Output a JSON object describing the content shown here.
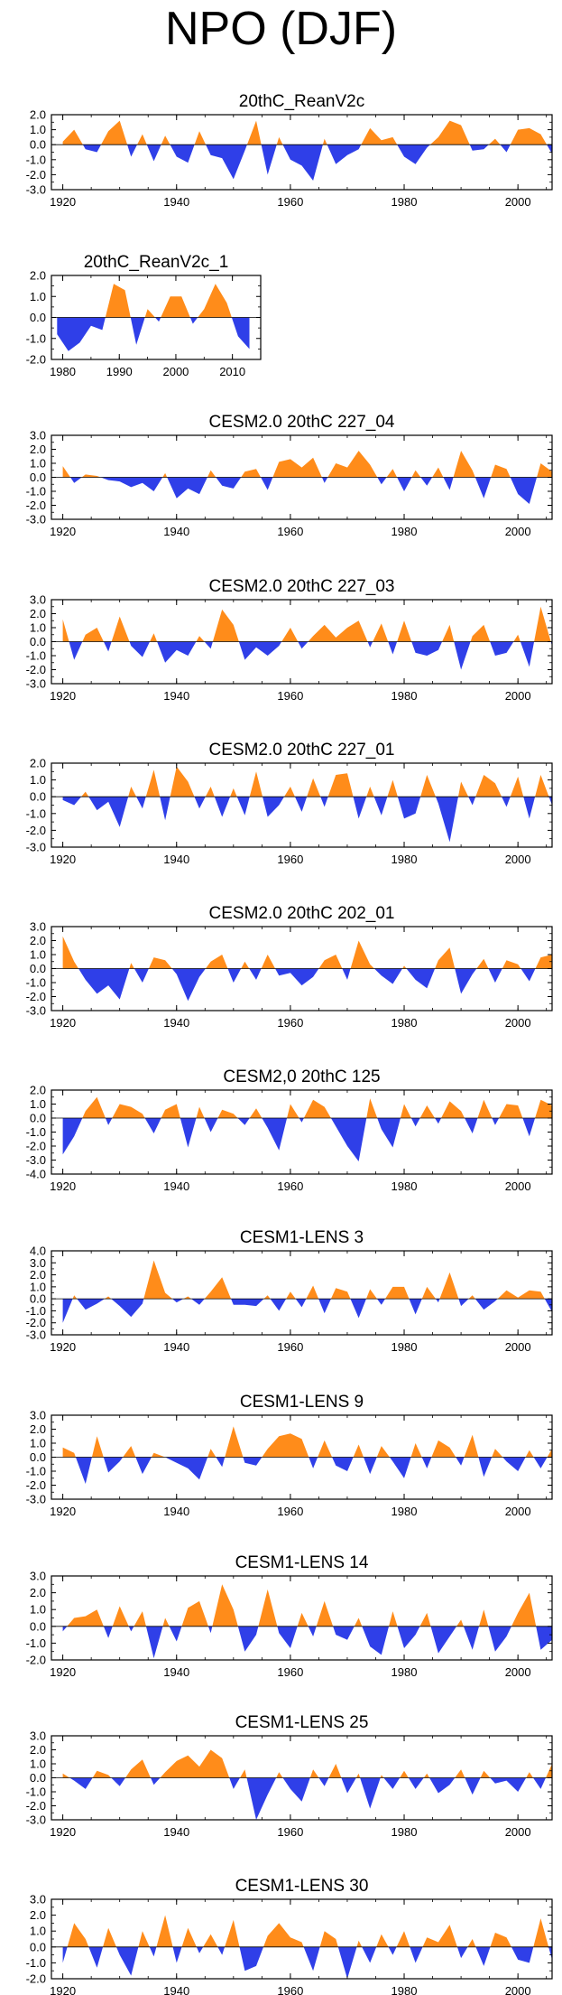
{
  "page_title": "NPO (DJF)",
  "colors": {
    "positive": "#ff8c1a",
    "negative": "#2f3fe8",
    "frame": "#000000"
  },
  "chart_data": [
    {
      "type": "area",
      "title": "20thC_ReanV2c",
      "x": [
        1920,
        1922,
        1924,
        1926,
        1928,
        1930,
        1932,
        1934,
        1936,
        1938,
        1940,
        1942,
        1944,
        1946,
        1948,
        1950,
        1952,
        1954,
        1956,
        1958,
        1960,
        1962,
        1964,
        1966,
        1968,
        1970,
        1972,
        1974,
        1976,
        1978,
        1980,
        1982,
        1984,
        1986,
        1988,
        1990,
        1992,
        1994,
        1996,
        1998,
        2000,
        2002,
        2004,
        2006
      ],
      "values": [
        0.2,
        1.0,
        -0.3,
        -0.5,
        0.9,
        1.6,
        -0.8,
        0.7,
        -1.1,
        0.6,
        -0.8,
        -1.2,
        0.9,
        -0.7,
        -0.9,
        -2.3,
        -0.4,
        1.6,
        -2.0,
        0.5,
        -1.0,
        -1.4,
        -2.4,
        0.4,
        -1.3,
        -0.7,
        -0.3,
        1.1,
        0.3,
        0.5,
        -0.8,
        -1.3,
        -0.2,
        0.5,
        1.6,
        1.3,
        -0.4,
        -0.3,
        0.4,
        -0.5,
        1.0,
        1.1,
        0.7,
        -0.6
      ],
      "xlim": [
        1918,
        2006
      ],
      "ylim": [
        -3.0,
        2.0
      ],
      "xticks": [
        "1920",
        "1940",
        "1960",
        "1980",
        "2000"
      ],
      "yticks": [
        "2.0",
        "1.0",
        "0.0",
        "-1.0",
        "-2.0",
        "-3.0"
      ]
    },
    {
      "type": "area",
      "title": "20thC_ReanV2c_1",
      "x": [
        1979,
        1981,
        1983,
        1985,
        1987,
        1989,
        1991,
        1993,
        1995,
        1997,
        1999,
        2001,
        2003,
        2005,
        2007,
        2009,
        2011,
        2013
      ],
      "values": [
        -0.8,
        -1.6,
        -1.2,
        -0.4,
        -0.6,
        1.6,
        1.3,
        -1.3,
        0.4,
        -0.2,
        1.0,
        1.0,
        -0.3,
        0.4,
        1.6,
        0.7,
        -0.9,
        -1.5
      ],
      "xlim": [
        1978,
        2015
      ],
      "ylim": [
        -2.0,
        2.0
      ],
      "xticks": [
        "1980",
        "1990",
        "2000",
        "2010"
      ],
      "yticks": [
        "2.0",
        "1.0",
        "0.0",
        "-1.0",
        "-2.0"
      ]
    },
    {
      "type": "area",
      "title": "CESM2.0 20thC 227_04",
      "x": [
        1920,
        1922,
        1924,
        1926,
        1928,
        1930,
        1932,
        1934,
        1936,
        1938,
        1940,
        1942,
        1944,
        1946,
        1948,
        1950,
        1952,
        1954,
        1956,
        1958,
        1960,
        1962,
        1964,
        1966,
        1968,
        1970,
        1972,
        1974,
        1976,
        1978,
        1980,
        1982,
        1984,
        1986,
        1988,
        1990,
        1992,
        1994,
        1996,
        1998,
        2000,
        2002,
        2004,
        2006
      ],
      "values": [
        0.8,
        -0.4,
        0.2,
        0.1,
        -0.2,
        -0.3,
        -0.7,
        -0.4,
        -1.0,
        0.3,
        -1.5,
        -0.8,
        -1.2,
        0.5,
        -0.6,
        -0.8,
        0.4,
        0.6,
        -0.9,
        1.1,
        1.3,
        0.7,
        1.4,
        -0.4,
        1.0,
        0.7,
        1.9,
        0.9,
        -0.5,
        0.6,
        -1.0,
        0.5,
        -0.6,
        0.7,
        -0.9,
        1.9,
        0.5,
        -1.5,
        0.9,
        0.6,
        -1.2,
        -1.9,
        1.0,
        0.4
      ],
      "xlim": [
        1918,
        2006
      ],
      "ylim": [
        -3.0,
        3.0
      ],
      "xticks": [
        "1920",
        "1940",
        "1960",
        "1980",
        "2000"
      ],
      "yticks": [
        "3.0",
        "2.0",
        "1.0",
        "0.0",
        "-1.0",
        "-2.0",
        "-3.0"
      ]
    },
    {
      "type": "area",
      "title": "CESM2.0 20thC 227_03",
      "x": [
        1920,
        1922,
        1924,
        1926,
        1928,
        1930,
        1932,
        1934,
        1936,
        1938,
        1940,
        1942,
        1944,
        1946,
        1948,
        1950,
        1952,
        1954,
        1956,
        1958,
        1960,
        1962,
        1964,
        1966,
        1968,
        1970,
        1972,
        1974,
        1976,
        1978,
        1980,
        1982,
        1984,
        1986,
        1988,
        1990,
        1992,
        1994,
        1996,
        1998,
        2000,
        2002,
        2004,
        2006
      ],
      "values": [
        1.6,
        -1.3,
        0.5,
        1.0,
        -0.7,
        1.8,
        -0.3,
        -1.1,
        0.6,
        -1.5,
        -0.6,
        -1.0,
        0.4,
        -0.5,
        2.3,
        1.2,
        -1.3,
        -0.4,
        -1.0,
        -0.3,
        1.0,
        -0.5,
        0.4,
        1.2,
        0.3,
        1.0,
        1.5,
        -0.4,
        1.3,
        -0.9,
        1.5,
        -0.8,
        -1.0,
        -0.6,
        1.2,
        -2.0,
        0.4,
        1.2,
        -1.0,
        -0.8,
        0.5,
        -1.8,
        2.5,
        -0.3
      ],
      "xlim": [
        1918,
        2006
      ],
      "ylim": [
        -3.0,
        3.0
      ],
      "xticks": [
        "1920",
        "1940",
        "1960",
        "1980",
        "2000"
      ],
      "yticks": [
        "3.0",
        "2.0",
        "1.0",
        "0.0",
        "-1.0",
        "-2.0",
        "-3.0"
      ]
    },
    {
      "type": "area",
      "title": "CESM2.0 20thC 227_01",
      "x": [
        1920,
        1922,
        1924,
        1926,
        1928,
        1930,
        1932,
        1934,
        1936,
        1938,
        1940,
        1942,
        1944,
        1946,
        1948,
        1950,
        1952,
        1954,
        1956,
        1958,
        1960,
        1962,
        1964,
        1966,
        1968,
        1970,
        1972,
        1974,
        1976,
        1978,
        1980,
        1982,
        1984,
        1986,
        1988,
        1990,
        1992,
        1994,
        1996,
        1998,
        2000,
        2002,
        2004,
        2006
      ],
      "values": [
        -0.2,
        -0.5,
        0.3,
        -0.8,
        -0.3,
        -1.8,
        0.6,
        -0.7,
        1.6,
        -1.4,
        1.8,
        0.9,
        -0.7,
        0.6,
        -1.2,
        0.5,
        -1.1,
        1.5,
        -1.2,
        -0.5,
        0.6,
        -0.9,
        1.1,
        -0.6,
        1.3,
        1.4,
        -1.3,
        0.6,
        -1.1,
        1.0,
        -1.3,
        -1.0,
        1.3,
        -0.4,
        -2.7,
        0.9,
        -0.5,
        1.3,
        0.8,
        -0.6,
        1.2,
        -1.3,
        1.3,
        -0.5
      ],
      "xlim": [
        1918,
        2006
      ],
      "ylim": [
        -3.0,
        2.0
      ],
      "xticks": [
        "1920",
        "1940",
        "1960",
        "1980",
        "2000"
      ],
      "yticks": [
        "2.0",
        "1.0",
        "0.0",
        "-1.0",
        "-2.0",
        "-3.0"
      ]
    },
    {
      "type": "area",
      "title": "CESM2.0 20thC 202_01",
      "x": [
        1920,
        1922,
        1924,
        1926,
        1928,
        1930,
        1932,
        1934,
        1936,
        1938,
        1940,
        1942,
        1944,
        1946,
        1948,
        1950,
        1952,
        1954,
        1956,
        1958,
        1960,
        1962,
        1964,
        1966,
        1968,
        1970,
        1972,
        1974,
        1976,
        1978,
        1980,
        1982,
        1984,
        1986,
        1988,
        1990,
        1992,
        1994,
        1996,
        1998,
        2000,
        2002,
        2004,
        2006
      ],
      "values": [
        2.3,
        0.5,
        -0.8,
        -1.8,
        -1.2,
        -2.2,
        0.4,
        -1.0,
        0.8,
        0.6,
        -0.4,
        -2.3,
        -0.6,
        0.5,
        1.0,
        -1.0,
        0.5,
        -0.8,
        1.0,
        -0.5,
        -0.3,
        -1.2,
        -0.6,
        0.6,
        1.0,
        -0.8,
        2.0,
        0.3,
        -0.5,
        -1.1,
        0.2,
        -0.8,
        -1.4,
        0.6,
        1.5,
        -1.8,
        -0.4,
        0.7,
        -1.0,
        0.6,
        0.3,
        -0.9,
        0.8,
        1.0
      ],
      "xlim": [
        1918,
        2006
      ],
      "ylim": [
        -3.0,
        3.0
      ],
      "xticks": [
        "1920",
        "1940",
        "1960",
        "1980",
        "2000"
      ],
      "yticks": [
        "3.0",
        "2.0",
        "1.0",
        "0.0",
        "-1.0",
        "-2.0",
        "-3.0"
      ]
    },
    {
      "type": "area",
      "title": "CESM2,0 20thC 125",
      "x": [
        1920,
        1922,
        1924,
        1926,
        1928,
        1930,
        1932,
        1934,
        1936,
        1938,
        1940,
        1942,
        1944,
        1946,
        1948,
        1950,
        1952,
        1954,
        1956,
        1958,
        1960,
        1962,
        1964,
        1966,
        1968,
        1970,
        1972,
        1974,
        1976,
        1978,
        1980,
        1982,
        1984,
        1986,
        1988,
        1990,
        1992,
        1994,
        1996,
        1998,
        2000,
        2002,
        2004,
        2006
      ],
      "values": [
        -2.6,
        -1.3,
        0.5,
        1.5,
        -0.5,
        1.0,
        0.8,
        0.3,
        -1.1,
        0.6,
        1.0,
        -2.1,
        0.8,
        -1.0,
        0.6,
        0.3,
        -0.5,
        0.7,
        -0.7,
        -2.3,
        1.0,
        -0.3,
        1.3,
        0.8,
        -0.6,
        -2.0,
        -3.1,
        1.4,
        -0.8,
        -2.1,
        1.0,
        -0.6,
        0.9,
        -0.4,
        1.2,
        0.5,
        -1.1,
        1.3,
        -0.5,
        1.0,
        0.9,
        -1.3,
        1.3,
        0.9
      ],
      "xlim": [
        1918,
        2006
      ],
      "ylim": [
        -4.0,
        2.0
      ],
      "xticks": [
        "1920",
        "1940",
        "1960",
        "1980",
        "2000"
      ],
      "yticks": [
        "2.0",
        "1.0",
        "0.0",
        "-1.0",
        "-2.0",
        "-3.0",
        "-4.0"
      ]
    },
    {
      "type": "area",
      "title": "CESM1-LENS 3",
      "x": [
        1920,
        1922,
        1924,
        1926,
        1928,
        1930,
        1932,
        1934,
        1936,
        1938,
        1940,
        1942,
        1944,
        1946,
        1948,
        1950,
        1952,
        1954,
        1956,
        1958,
        1960,
        1962,
        1964,
        1966,
        1968,
        1970,
        1972,
        1974,
        1976,
        1978,
        1980,
        1982,
        1984,
        1986,
        1988,
        1990,
        1992,
        1994,
        1996,
        1998,
        2000,
        2002,
        2004,
        2006
      ],
      "values": [
        -2.0,
        0.3,
        -0.9,
        -0.4,
        0.2,
        -0.6,
        -1.5,
        -0.4,
        3.2,
        0.5,
        -0.3,
        0.2,
        -0.5,
        0.6,
        1.8,
        -0.5,
        -0.5,
        -0.6,
        0.3,
        -1.0,
        0.6,
        -0.7,
        1.1,
        -1.2,
        0.9,
        0.6,
        -1.6,
        0.8,
        -0.5,
        1.0,
        1.0,
        -1.3,
        1.0,
        -0.3,
        2.2,
        -0.6,
        0.3,
        -0.9,
        -0.2,
        0.7,
        0.1,
        0.7,
        0.6,
        -1.1
      ],
      "xlim": [
        1918,
        2006
      ],
      "ylim": [
        -3.0,
        4.0
      ],
      "xticks": [
        "1920",
        "1940",
        "1960",
        "1980",
        "2000"
      ],
      "yticks": [
        "4.0",
        "3.0",
        "2.0",
        "1.0",
        "0.0",
        "-1.0",
        "-2.0",
        "-3.0"
      ]
    },
    {
      "type": "area",
      "title": "CESM1-LENS 9",
      "x": [
        1920,
        1922,
        1924,
        1926,
        1928,
        1930,
        1932,
        1934,
        1936,
        1938,
        1940,
        1942,
        1944,
        1946,
        1948,
        1950,
        1952,
        1954,
        1956,
        1958,
        1960,
        1962,
        1964,
        1966,
        1968,
        1970,
        1972,
        1974,
        1976,
        1978,
        1980,
        1982,
        1984,
        1986,
        1988,
        1990,
        1992,
        1994,
        1996,
        1998,
        2000,
        2002,
        2004,
        2006
      ],
      "values": [
        0.7,
        0.3,
        -1.9,
        1.5,
        -1.1,
        -0.3,
        0.8,
        -1.2,
        0.3,
        0.0,
        -0.4,
        -0.8,
        -1.6,
        0.6,
        -0.7,
        2.2,
        -0.4,
        -0.6,
        0.6,
        1.5,
        1.7,
        1.3,
        -0.8,
        1.2,
        -0.6,
        -1.0,
        0.9,
        -1.2,
        0.8,
        -0.3,
        -1.5,
        1.0,
        -0.8,
        1.2,
        0.7,
        -0.6,
        1.6,
        -1.4,
        0.6,
        -0.3,
        -1.0,
        0.5,
        -0.8,
        0.6
      ],
      "xlim": [
        1918,
        2006
      ],
      "ylim": [
        -3.0,
        3.0
      ],
      "xticks": [
        "1920",
        "1940",
        "1960",
        "1980",
        "2000"
      ],
      "yticks": [
        "3.0",
        "2.0",
        "1.0",
        "0.0",
        "-1.0",
        "-2.0",
        "-3.0"
      ]
    },
    {
      "type": "area",
      "title": "CESM1-LENS 14",
      "x": [
        1920,
        1922,
        1924,
        1926,
        1928,
        1930,
        1932,
        1934,
        1936,
        1938,
        1940,
        1942,
        1944,
        1946,
        1948,
        1950,
        1952,
        1954,
        1956,
        1958,
        1960,
        1962,
        1964,
        1966,
        1968,
        1970,
        1972,
        1974,
        1976,
        1978,
        1980,
        1982,
        1984,
        1986,
        1988,
        1990,
        1992,
        1994,
        1996,
        1998,
        2000,
        2002,
        2004,
        2006
      ],
      "values": [
        -0.3,
        0.5,
        0.6,
        1.0,
        -0.7,
        1.2,
        -0.3,
        0.9,
        -1.9,
        0.5,
        -0.9,
        1.1,
        1.5,
        -0.4,
        2.5,
        1.0,
        -1.5,
        -0.5,
        2.2,
        -0.4,
        -1.3,
        0.8,
        -0.6,
        1.5,
        -0.5,
        -0.8,
        0.5,
        -1.2,
        -1.7,
        0.9,
        -1.3,
        -0.5,
        0.8,
        -1.6,
        -0.6,
        0.4,
        -1.4,
        1.0,
        -1.5,
        -0.6,
        0.8,
        2.0,
        -1.4,
        -0.8
      ],
      "xlim": [
        1918,
        2006
      ],
      "ylim": [
        -2.0,
        3.0
      ],
      "xticks": [
        "1920",
        "1940",
        "1960",
        "1980",
        "2000"
      ],
      "yticks": [
        "3.0",
        "2.0",
        "1.0",
        "0.0",
        "-1.0",
        "-2.0"
      ]
    },
    {
      "type": "area",
      "title": "CESM1-LENS 25",
      "x": [
        1920,
        1922,
        1924,
        1926,
        1928,
        1930,
        1932,
        1934,
        1936,
        1938,
        1940,
        1942,
        1944,
        1946,
        1948,
        1950,
        1952,
        1954,
        1956,
        1958,
        1960,
        1962,
        1964,
        1966,
        1968,
        1970,
        1972,
        1974,
        1976,
        1978,
        1980,
        1982,
        1984,
        1986,
        1988,
        1990,
        1992,
        1994,
        1996,
        1998,
        2000,
        2002,
        2004,
        2006
      ],
      "values": [
        0.3,
        -0.2,
        -0.8,
        0.5,
        0.2,
        -0.6,
        0.6,
        1.3,
        -0.5,
        0.4,
        1.2,
        1.6,
        0.8,
        2.0,
        1.4,
        -0.8,
        0.6,
        -3.0,
        -1.2,
        0.4,
        -0.8,
        -1.7,
        0.6,
        -0.6,
        1.0,
        -1.1,
        0.3,
        -2.2,
        0.2,
        -0.8,
        0.5,
        -0.8,
        0.3,
        -1.1,
        -0.5,
        0.6,
        -1.2,
        0.5,
        -0.4,
        -0.2,
        -1.0,
        0.4,
        -0.8,
        1.0
      ],
      "xlim": [
        1918,
        2006
      ],
      "ylim": [
        -3.0,
        3.0
      ],
      "xticks": [
        "1920",
        "1940",
        "1960",
        "1980",
        "2000"
      ],
      "yticks": [
        "3.0",
        "2.0",
        "1.0",
        "0.0",
        "-1.0",
        "-2.0",
        "-3.0"
      ]
    },
    {
      "type": "area",
      "title": "CESM1-LENS 30",
      "x": [
        1920,
        1922,
        1924,
        1926,
        1928,
        1930,
        1932,
        1934,
        1936,
        1938,
        1940,
        1942,
        1944,
        1946,
        1948,
        1950,
        1952,
        1954,
        1956,
        1958,
        1960,
        1962,
        1964,
        1966,
        1968,
        1970,
        1972,
        1974,
        1976,
        1978,
        1980,
        1982,
        1984,
        1986,
        1988,
        1990,
        1992,
        1994,
        1996,
        1998,
        2000,
        2002,
        2004,
        2006
      ],
      "values": [
        -1.0,
        1.5,
        0.5,
        -1.3,
        1.2,
        -0.5,
        -1.8,
        1.0,
        -0.6,
        2.0,
        -1.0,
        1.2,
        -0.4,
        0.8,
        -0.5,
        1.7,
        -1.5,
        -1.2,
        0.7,
        1.5,
        0.6,
        0.3,
        -1.5,
        1.0,
        0.5,
        -2.0,
        0.4,
        -1.0,
        0.8,
        -0.5,
        1.0,
        -1.0,
        0.6,
        0.3,
        1.4,
        -0.7,
        0.5,
        -1.2,
        0.9,
        0.6,
        -0.8,
        -1.0,
        1.8,
        -0.8
      ],
      "xlim": [
        1918,
        2006
      ],
      "ylim": [
        -2.0,
        3.0
      ],
      "xticks": [
        "1920",
        "1940",
        "1960",
        "1980",
        "2000"
      ],
      "yticks": [
        "3.0",
        "2.0",
        "1.0",
        "0.0",
        "-1.0",
        "-2.0"
      ]
    }
  ]
}
